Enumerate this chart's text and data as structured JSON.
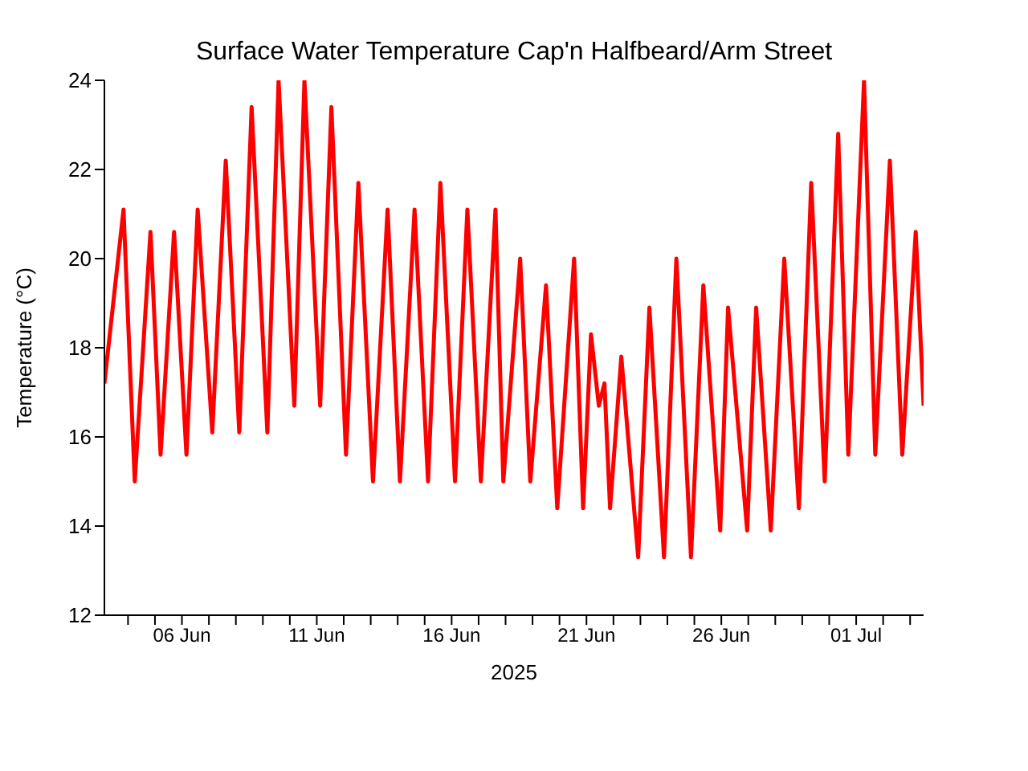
{
  "chart_data": {
    "type": "line",
    "title": "Surface Water Temperature Cap'n Halfbeard/Arm Street",
    "xlabel": "2025",
    "ylabel": "Temperature (°C)",
    "x": [
      "2025-06-03T03:00",
      "2025-06-03T20:00",
      "2025-06-04T06:00",
      "2025-06-04T20:00",
      "2025-06-05T05:00",
      "2025-06-05T17:00",
      "2025-06-06T04:00",
      "2025-06-06T14:00",
      "2025-06-07T03:00",
      "2025-06-07T15:00",
      "2025-06-08T03:00",
      "2025-06-08T14:00",
      "2025-06-09T04:00",
      "2025-06-09T14:00",
      "2025-06-10T04:00",
      "2025-06-10T13:00",
      "2025-06-11T03:00",
      "2025-06-11T13:00",
      "2025-06-12T02:00",
      "2025-06-12T13:00",
      "2025-06-13T02:00",
      "2025-06-13T15:00",
      "2025-06-14T02:00",
      "2025-06-14T15:00",
      "2025-06-15T03:00",
      "2025-06-15T14:00",
      "2025-06-16T03:00",
      "2025-06-16T14:00",
      "2025-06-17T02:00",
      "2025-06-17T15:00",
      "2025-06-17T22:00",
      "2025-06-18T13:00",
      "2025-06-18T22:00",
      "2025-06-19T12:00",
      "2025-06-19T22:00",
      "2025-06-20T13:00",
      "2025-06-20T21:00",
      "2025-06-21T04:00",
      "2025-06-21T11:00",
      "2025-06-21T16:00",
      "2025-06-21T21:00",
      "2025-06-22T07:00",
      "2025-06-22T22:00",
      "2025-06-23T08:00",
      "2025-06-23T21:00",
      "2025-06-24T08:00",
      "2025-06-24T21:00",
      "2025-06-25T08:00",
      "2025-06-25T23:00",
      "2025-06-26T06:00",
      "2025-06-26T23:00",
      "2025-06-27T07:00",
      "2025-06-27T20:00",
      "2025-06-28T08:00",
      "2025-06-28T21:00",
      "2025-06-29T08:00",
      "2025-06-29T20:00",
      "2025-06-30T08:00",
      "2025-06-30T17:00",
      "2025-07-01T07:00",
      "2025-07-01T17:00",
      "2025-07-02T06:00",
      "2025-07-02T17:00",
      "2025-07-03T05:00",
      "2025-07-03T12:00"
    ],
    "series": [
      {
        "color": "#ff0000",
        "values": [
          17.2,
          21.1,
          15.0,
          20.6,
          15.6,
          20.6,
          15.6,
          21.1,
          16.1,
          22.2,
          16.1,
          23.4,
          16.1,
          24.0,
          16.7,
          24.0,
          16.7,
          23.4,
          15.6,
          21.7,
          15.0,
          21.1,
          15.0,
          21.1,
          15.0,
          21.7,
          15.0,
          21.1,
          15.0,
          21.1,
          15.0,
          20.0,
          15.0,
          19.4,
          14.4,
          20.0,
          14.4,
          18.3,
          16.7,
          17.2,
          14.4,
          17.8,
          13.3,
          18.9,
          13.3,
          20.0,
          13.3,
          19.4,
          13.9,
          18.9,
          13.9,
          18.9,
          13.9,
          20.0,
          14.4,
          21.7,
          15.0,
          22.8,
          15.6,
          24.0,
          15.6,
          22.2,
          15.6,
          20.6,
          16.7
        ]
      }
    ],
    "xlim": [
      "2025-06-03T03:00",
      "2025-07-03T12:00"
    ],
    "xticks": [
      {
        "value": "2025-06-04",
        "label": null
      },
      {
        "value": "2025-06-05",
        "label": null
      },
      {
        "value": "2025-06-06",
        "label": "06 Jun"
      },
      {
        "value": "2025-06-07",
        "label": null
      },
      {
        "value": "2025-06-08",
        "label": null
      },
      {
        "value": "2025-06-09",
        "label": null
      },
      {
        "value": "2025-06-10",
        "label": null
      },
      {
        "value": "2025-06-11",
        "label": "11 Jun"
      },
      {
        "value": "2025-06-12",
        "label": null
      },
      {
        "value": "2025-06-13",
        "label": null
      },
      {
        "value": "2025-06-14",
        "label": null
      },
      {
        "value": "2025-06-15",
        "label": null
      },
      {
        "value": "2025-06-16",
        "label": "16 Jun"
      },
      {
        "value": "2025-06-17",
        "label": null
      },
      {
        "value": "2025-06-18",
        "label": null
      },
      {
        "value": "2025-06-19",
        "label": null
      },
      {
        "value": "2025-06-20",
        "label": null
      },
      {
        "value": "2025-06-21",
        "label": "21 Jun"
      },
      {
        "value": "2025-06-22",
        "label": null
      },
      {
        "value": "2025-06-23",
        "label": null
      },
      {
        "value": "2025-06-24",
        "label": null
      },
      {
        "value": "2025-06-25",
        "label": null
      },
      {
        "value": "2025-06-26",
        "label": "26 Jun"
      },
      {
        "value": "2025-06-27",
        "label": null
      },
      {
        "value": "2025-06-28",
        "label": null
      },
      {
        "value": "2025-06-29",
        "label": null
      },
      {
        "value": "2025-06-30",
        "label": null
      },
      {
        "value": "2025-07-01",
        "label": "01 Jul"
      },
      {
        "value": "2025-07-02",
        "label": null
      },
      {
        "value": "2025-07-03",
        "label": null
      }
    ],
    "ylim": [
      12,
      24
    ],
    "yticks": [
      12,
      14,
      16,
      18,
      20,
      22,
      24
    ],
    "marker": "none",
    "line_style": "solid"
  }
}
